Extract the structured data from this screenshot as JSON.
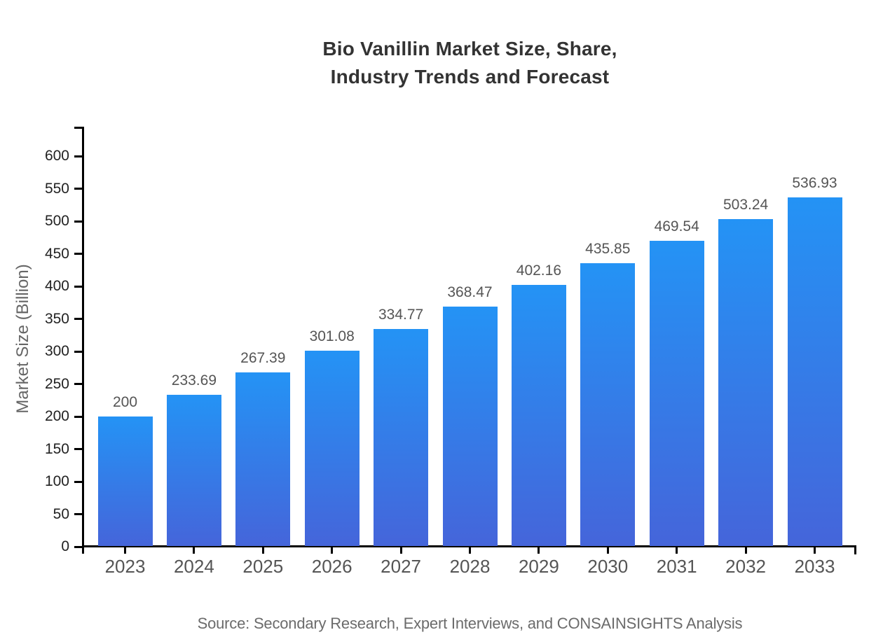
{
  "page": {
    "background_color": "#ffffff"
  },
  "chart": {
    "title": "Bio Vanillin Market Size, Share,\nIndustry Trends and Forecast",
    "source_note": "Source: Secondary Research, Expert Interviews, and CONSAINSIGHTS Analysis"
  },
  "chart_data": {
    "type": "bar",
    "title": "Bio Vanillin Market Size, Share, Industry Trends and Forecast",
    "categories": [
      "2023",
      "2024",
      "2025",
      "2026",
      "2027",
      "2028",
      "2029",
      "2030",
      "2031",
      "2032",
      "2033"
    ],
    "values": [
      200,
      233.69,
      267.39,
      301.08,
      334.77,
      368.47,
      402.16,
      435.85,
      469.54,
      503.24,
      536.93
    ],
    "value_labels": [
      "200",
      "233.69",
      "267.39",
      "301.08",
      "334.77",
      "368.47",
      "402.16",
      "435.85",
      "469.54",
      "503.24",
      "536.93"
    ],
    "xlabel": "",
    "ylabel": "Market Size (Billion)",
    "ylim": [
      0,
      645
    ],
    "yticks": [
      0,
      50,
      100,
      150,
      200,
      250,
      300,
      350,
      400,
      450,
      500,
      550,
      600
    ],
    "ytick_labels": [
      "0",
      "50",
      "100",
      "150",
      "200",
      "250",
      "300",
      "350",
      "400",
      "450",
      "500",
      "550",
      "600"
    ],
    "grid": false,
    "legend": null,
    "source_note": "Source: Secondary Research, Expert Interviews, and CONSAINSIGHTS Analysis"
  },
  "colors": {
    "bar_gradient_top": "#2493f5",
    "bar_gradient_bottom": "#4565da",
    "axis": "#000000",
    "title_text": "#333333",
    "y_tick_text": "#222222",
    "x_tick_text": "#555555",
    "value_label_text": "#555555",
    "y_axis_title_text": "#666666",
    "source_text": "#6b6b6b"
  }
}
